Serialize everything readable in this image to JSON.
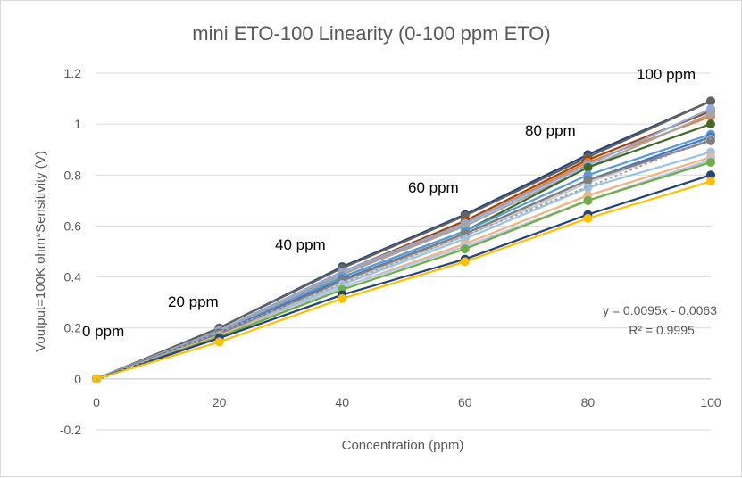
{
  "chart_data": {
    "type": "line",
    "title": "mini ETO-100 Linearity (0-100 ppm ETO)",
    "xlabel": "Concentration (ppm)",
    "ylabel": "Voutput=100K ohm*Sensitivity (V)",
    "xlim": [
      0,
      100
    ],
    "ylim": [
      -0.2,
      1.2
    ],
    "x_ticks": [
      "0",
      "20",
      "40",
      "60",
      "80",
      "100"
    ],
    "y_ticks": [
      "-0.2",
      "0",
      "0.2",
      "0.4",
      "0.6",
      "0.8",
      "1",
      "1.2"
    ],
    "grid": "horizontal",
    "legend": "none",
    "x": [
      0,
      20,
      40,
      60,
      80,
      100
    ],
    "series": [
      {
        "color": "#264478",
        "values": [
          0,
          0.2,
          0.44,
          0.645,
          0.88,
          1.09
        ]
      },
      {
        "color": "#636363",
        "values": [
          0,
          0.2,
          0.435,
          0.64,
          0.87,
          1.09
        ]
      },
      {
        "color": "#9e480e",
        "values": [
          0,
          0.19,
          0.42,
          0.62,
          0.86,
          1.05
        ]
      },
      {
        "color": "#ed7d31",
        "values": [
          0,
          0.19,
          0.41,
          0.61,
          0.85,
          1.03
        ]
      },
      {
        "color": "#8faadc",
        "values": [
          0,
          0.19,
          0.42,
          0.61,
          0.84,
          1.06
        ]
      },
      {
        "color": "#a5a5a5",
        "values": [
          0,
          0.185,
          0.41,
          0.6,
          0.83,
          1.04
        ]
      },
      {
        "color": "#43682b",
        "values": [
          0,
          0.18,
          0.4,
          0.58,
          0.83,
          1.0
        ]
      },
      {
        "color": "#5b9bd5",
        "values": [
          0,
          0.18,
          0.4,
          0.58,
          0.8,
          0.96
        ]
      },
      {
        "color": "#4472c4",
        "values": [
          0,
          0.18,
          0.39,
          0.57,
          0.78,
          0.95
        ]
      },
      {
        "color": "#c9c9c9",
        "values": [
          0,
          0.175,
          0.38,
          0.56,
          0.77,
          0.94
        ]
      },
      {
        "color": "#7f7f7f",
        "values": [
          0,
          0.175,
          0.385,
          0.57,
          0.78,
          0.935
        ]
      },
      {
        "color": "#9dc3e6",
        "values": [
          0,
          0.17,
          0.37,
          0.55,
          0.75,
          0.89
        ]
      },
      {
        "color": "#f4b183",
        "values": [
          0,
          0.17,
          0.36,
          0.53,
          0.72,
          0.87
        ]
      },
      {
        "color": "#b4c7e7",
        "values": [
          0,
          0.165,
          0.36,
          0.52,
          0.7,
          0.86
        ]
      },
      {
        "color": "#70ad47",
        "values": [
          0,
          0.165,
          0.35,
          0.51,
          0.7,
          0.85
        ]
      },
      {
        "color": "#264478",
        "values": [
          0,
          0.16,
          0.33,
          0.47,
          0.645,
          0.8
        ]
      },
      {
        "color": "#ffc000",
        "values": [
          0,
          0.145,
          0.315,
          0.46,
          0.63,
          0.775
        ]
      }
    ],
    "trendline": {
      "values": [
        -0.0063,
        0.1837,
        0.3737,
        0.5637,
        0.7537,
        0.9437
      ],
      "color": "#a5a5a5"
    },
    "annotations": [
      "0 ppm",
      "20 ppm",
      "40 ppm",
      "60 ppm",
      "80 ppm",
      "100 ppm"
    ],
    "trend_equation": "y = 0.0095x - 0.0063",
    "trend_r2": "R² = 0.9995"
  }
}
